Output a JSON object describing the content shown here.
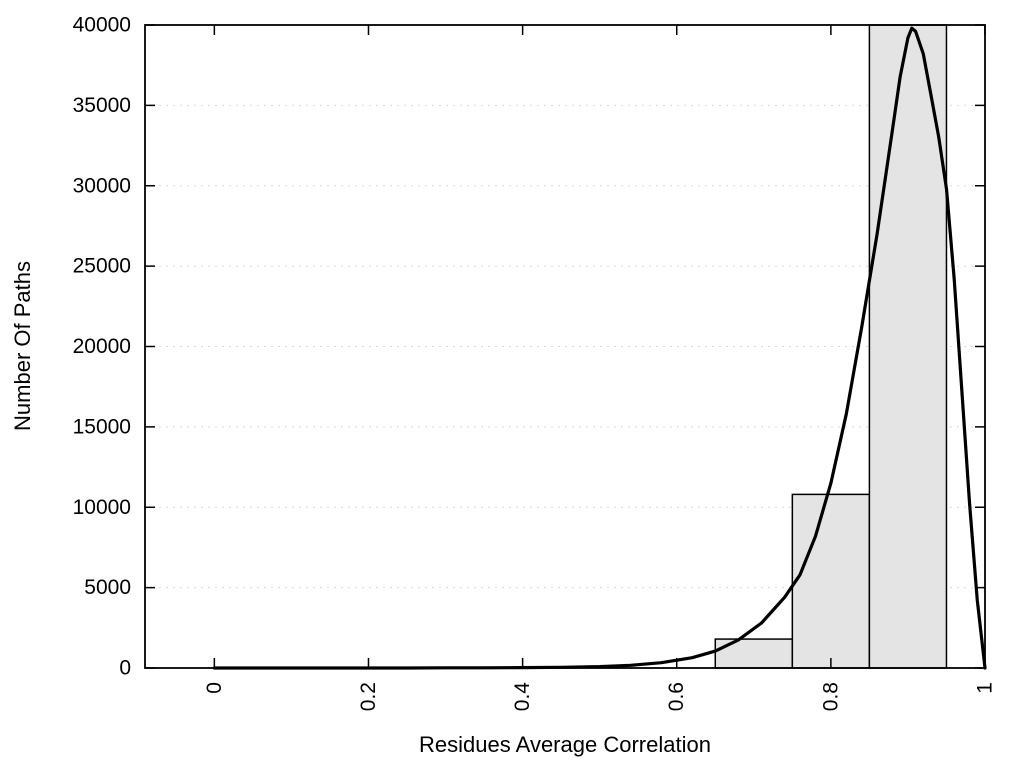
{
  "chart_data": {
    "type": "bar",
    "subtype": "histogram-with-density-curve",
    "title": "",
    "xlabel": "Residues Average Correlation",
    "ylabel": "Number Of Paths",
    "xlim": [
      -0.09,
      1.0
    ],
    "ylim": [
      0,
      40000
    ],
    "xticks": [
      0,
      0.2,
      0.4,
      0.6,
      0.8,
      1
    ],
    "xtick_labels": [
      "0",
      "0.2",
      "0.4",
      "0.6",
      "0.8",
      "1"
    ],
    "yticks": [
      0,
      5000,
      10000,
      15000,
      20000,
      25000,
      30000,
      35000,
      40000
    ],
    "ytick_labels": [
      "0",
      "5000",
      "10000",
      "15000",
      "20000",
      "25000",
      "30000",
      "35000",
      "40000"
    ],
    "grid": true,
    "legend": "none",
    "bar_fill": "#e4e4e4",
    "bar_stroke": "#000000",
    "curve_color": "#000000",
    "grid_color": "#d8d8d8",
    "bars": [
      {
        "x0": 0.65,
        "x1": 0.75,
        "value": 1800
      },
      {
        "x0": 0.75,
        "x1": 0.85,
        "value": 10800
      },
      {
        "x0": 0.85,
        "x1": 0.95,
        "value": 40000
      }
    ],
    "curve": {
      "x": [
        0,
        0.05,
        0.1,
        0.15,
        0.2,
        0.25,
        0.3,
        0.35,
        0.4,
        0.45,
        0.5,
        0.54,
        0.58,
        0.62,
        0.65,
        0.68,
        0.71,
        0.74,
        0.76,
        0.78,
        0.8,
        0.82,
        0.84,
        0.86,
        0.88,
        0.89,
        0.9,
        0.905,
        0.91,
        0.92,
        0.93,
        0.94,
        0.95,
        0.96,
        0.97,
        0.98,
        0.99,
        1.0
      ],
      "y": [
        0,
        0,
        0,
        0,
        0,
        0,
        10,
        15,
        25,
        45,
        90,
        170,
        330,
        640,
        1050,
        1750,
        2800,
        4400,
        5800,
        8200,
        11500,
        15800,
        21200,
        27000,
        33500,
        36800,
        39200,
        39800,
        39600,
        38200,
        35600,
        33000,
        29800,
        24200,
        17200,
        10200,
        4200,
        0
      ]
    }
  }
}
